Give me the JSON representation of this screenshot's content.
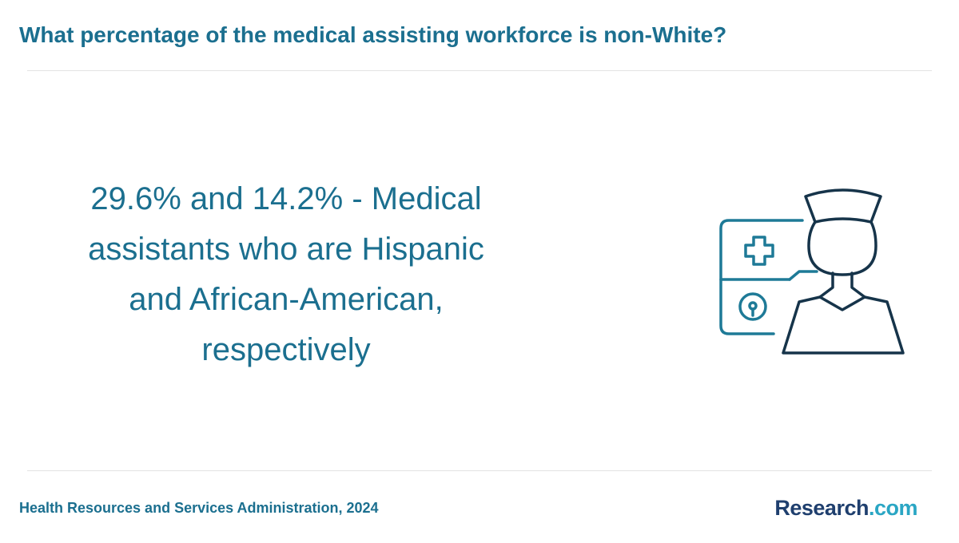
{
  "title": "What percentage of the medical assisting workforce is non-White?",
  "stat_text": "29.6% and 14.2% - Medical assistants who are Hispanic and African-American, respectively",
  "illustration": {
    "icon": "nurse-with-medical-chart-icon",
    "colors": {
      "chart": "#1e7a97",
      "figure": "#16344a"
    }
  },
  "source": "Health Resources and Services Administration, 2024",
  "logo": {
    "brand": "Research",
    "tld": ".com"
  },
  "colors": {
    "accent": "#1b6f8f",
    "logo_brand": "#1f3f6e",
    "logo_tld": "#2aa6c4"
  }
}
